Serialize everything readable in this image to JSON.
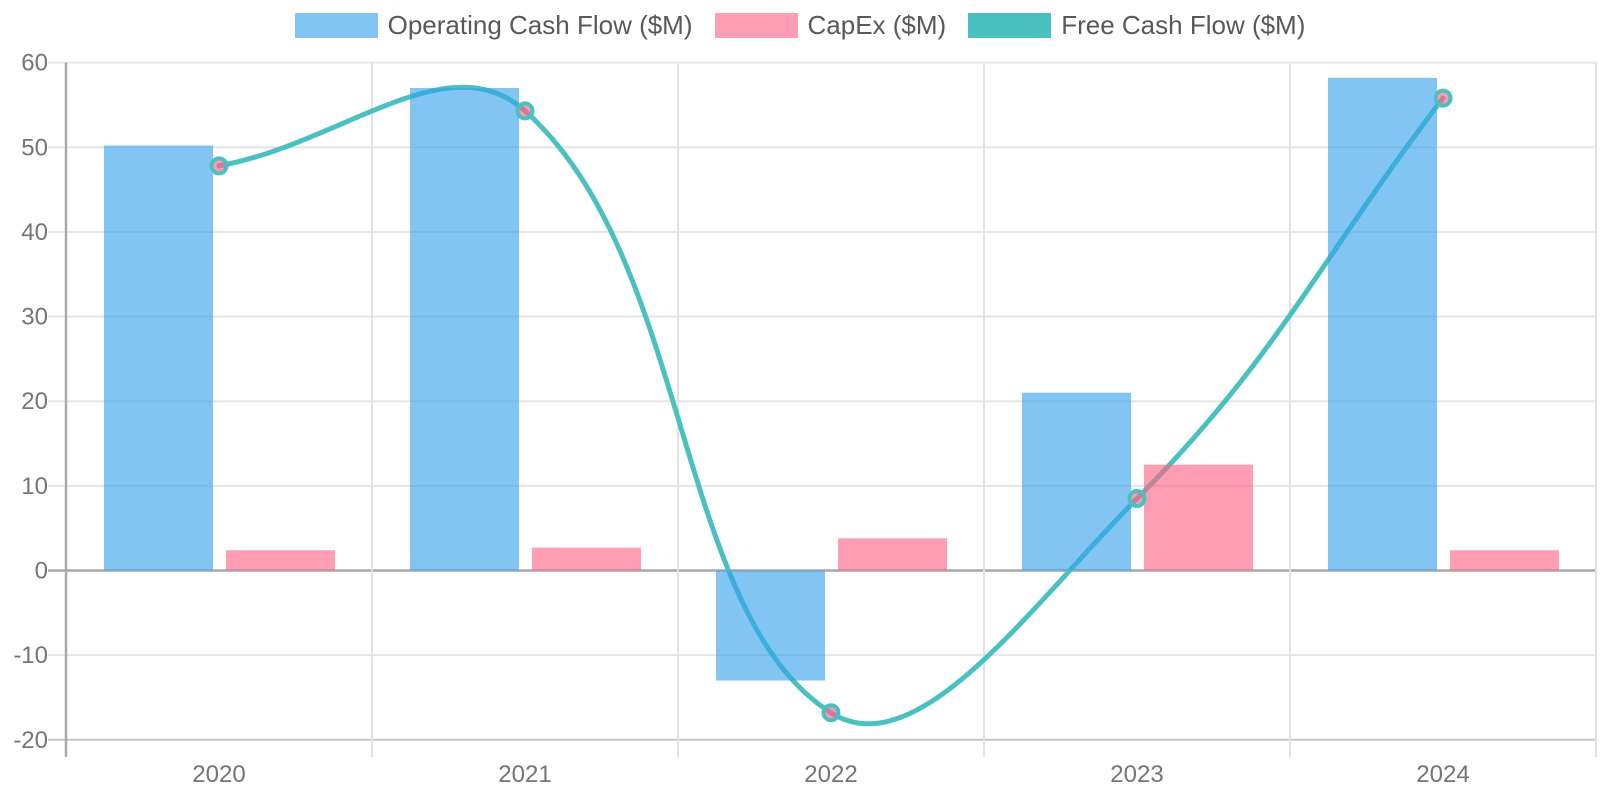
{
  "legend": {
    "items": [
      {
        "label": "Operating Cash Flow ($M)",
        "color": "#36A2EB",
        "series_type": "bar"
      },
      {
        "label": "CapEx ($M)",
        "color": "#FF6384",
        "series_type": "bar"
      },
      {
        "label": "Free Cash Flow ($M)",
        "color": "#4BC0C0",
        "series_type": "line"
      }
    ]
  },
  "chart_data": {
    "type": "combo-bar-line",
    "categories": [
      "2020",
      "2021",
      "2022",
      "2023",
      "2024"
    ],
    "series": [
      {
        "name": "Operating Cash Flow ($M)",
        "type": "bar",
        "color": "#36A2EB",
        "values": [
          50.2,
          57,
          -13,
          21,
          58.2
        ]
      },
      {
        "name": "CapEx ($M)",
        "type": "bar",
        "color": "#FF6384",
        "values": [
          2.4,
          2.7,
          3.8,
          12.5,
          2.4
        ]
      },
      {
        "name": "Free Cash Flow ($M)",
        "type": "line",
        "color": "#4BC0C0",
        "values": [
          47.8,
          54.3,
          -16.8,
          8.5,
          55.8
        ]
      }
    ],
    "title": "",
    "xlabel": "",
    "ylabel": "",
    "ylim": [
      -20,
      60
    ],
    "ytick_step": 10,
    "y_tick_labels": [
      "60",
      "50",
      "40",
      "30",
      "20",
      "10",
      "0",
      "-10",
      "-20"
    ],
    "x_tick_labels": [
      "2020",
      "2021",
      "2022",
      "2023",
      "2024"
    ],
    "grid": true,
    "legend_position": "top"
  },
  "colors": {
    "accent_blue": "#36A2EB",
    "accent_pink": "#FF6384",
    "accent_teal": "#4BC0C0",
    "gridline": "#E5E5E5",
    "zero_line": "#A9A9A9",
    "axis_line": "#A9A9A9",
    "bottom_border": "#C6C6C6",
    "tick_text": "#757575",
    "legend_text": "#595959"
  }
}
